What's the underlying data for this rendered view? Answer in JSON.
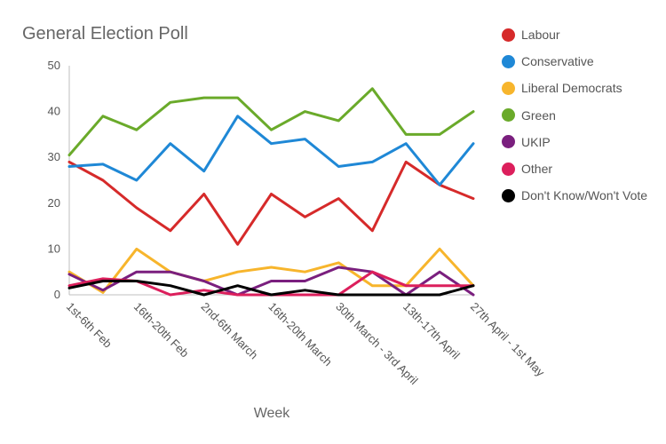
{
  "chart_data": {
    "type": "line",
    "title": "General Election Poll",
    "xlabel": "Week",
    "ylabel": "",
    "ylim": [
      0,
      50
    ],
    "yticks": [
      0,
      10,
      20,
      30,
      40,
      50
    ],
    "grid": false,
    "legend_position": "right",
    "categories": [
      "1st-6th Feb",
      "",
      "16th-20th Feb",
      "",
      "2nd-6th March",
      "",
      "16th-20th March",
      "",
      "30th March - 3rd April",
      "",
      "13th-17th April",
      "",
      "27th April - 1st May"
    ],
    "series": [
      {
        "name": "Labour",
        "color": "#d62a2a",
        "values": [
          29,
          25,
          19,
          14,
          22,
          11,
          22,
          17,
          21,
          14,
          29,
          24,
          21
        ]
      },
      {
        "name": "Conservative",
        "color": "#1f88d6",
        "values": [
          28,
          28.5,
          25,
          33,
          27,
          39,
          33,
          34,
          28,
          29,
          33,
          24,
          33
        ]
      },
      {
        "name": "Liberal Democrats",
        "color": "#f7b52c",
        "values": [
          5,
          0.5,
          10,
          5,
          3,
          5,
          6,
          5,
          7,
          2,
          2,
          10,
          2
        ]
      },
      {
        "name": "Green",
        "color": "#6aaa2a",
        "values": [
          30.5,
          39,
          36,
          42,
          43,
          43,
          36,
          40,
          38,
          45,
          35,
          35,
          40
        ]
      },
      {
        "name": "UKIP",
        "color": "#7a1f7e",
        "values": [
          4.5,
          1,
          5,
          5,
          3,
          0,
          3,
          3,
          6,
          5,
          0,
          5,
          0
        ]
      },
      {
        "name": "Other",
        "color": "#dc1f5c",
        "values": [
          2,
          3.5,
          3,
          0,
          1,
          0,
          0,
          0,
          0,
          5,
          2,
          2,
          2
        ]
      },
      {
        "name": "Don't Know/Won't Vote",
        "color": "#000000",
        "values": [
          1.5,
          3,
          3,
          2,
          0,
          2,
          0,
          1,
          0,
          0,
          0,
          0,
          2
        ]
      }
    ]
  }
}
